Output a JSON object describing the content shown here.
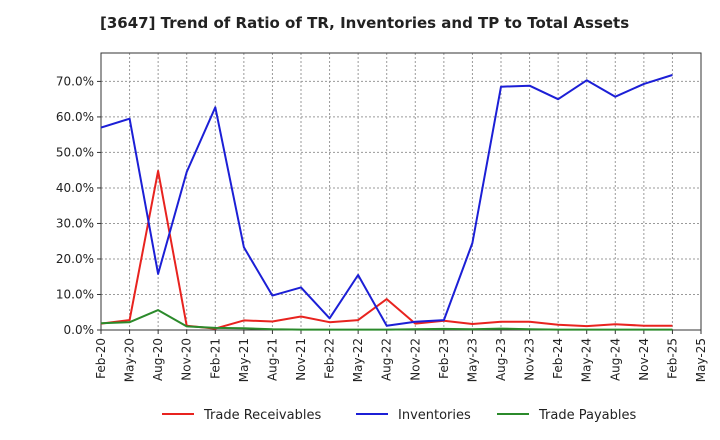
{
  "chart_data": {
    "type": "line",
    "title": "[3647]  Trend of Ratio of TR, Inventories and TP to Total Assets",
    "xlabel": "",
    "ylabel": "",
    "categories": [
      "Feb-20",
      "May-20",
      "Aug-20",
      "Nov-20",
      "Feb-21",
      "May-21",
      "Aug-21",
      "Nov-21",
      "Feb-22",
      "May-22",
      "Aug-22",
      "Nov-22",
      "Feb-23",
      "May-23",
      "Aug-23",
      "Nov-23",
      "Feb-24",
      "May-24",
      "Aug-24",
      "Nov-24",
      "Feb-25",
      "May-25"
    ],
    "ylim": [
      0,
      78
    ],
    "yticks": [
      0,
      10,
      20,
      30,
      40,
      50,
      60,
      70
    ],
    "ytick_labels": [
      "0.0%",
      "10.0%",
      "20.0%",
      "30.0%",
      "40.0%",
      "50.0%",
      "60.0%",
      "70.0%"
    ],
    "grid": true,
    "legend_position": "bottom",
    "series": [
      {
        "name": "Trade Receivables",
        "color": "#e8231f",
        "values": [
          1.8,
          2.8,
          44.8,
          1.2,
          0.4,
          2.7,
          2.4,
          3.8,
          2.2,
          2.8,
          8.7,
          1.8,
          2.6,
          1.7,
          2.3,
          2.3,
          1.5,
          1.1,
          1.6,
          1.2,
          1.2,
          null
        ]
      },
      {
        "name": "Inventories",
        "color": "#1c1fd6",
        "values": [
          57.0,
          59.5,
          15.8,
          44.5,
          62.7,
          23.3,
          9.7,
          12.0,
          3.3,
          15.5,
          1.2,
          2.3,
          2.8,
          24.5,
          68.5,
          68.8,
          65.0,
          70.3,
          65.7,
          69.3,
          71.8,
          null
        ]
      },
      {
        "name": "Trade Payables",
        "color": "#2b8a2b",
        "values": [
          1.9,
          2.2,
          5.6,
          1.0,
          0.6,
          0.5,
          0.2,
          0.1,
          0.1,
          0.1,
          0.1,
          0.2,
          0.3,
          0.2,
          0.4,
          0.2,
          0.1,
          0.1,
          0.1,
          0.1,
          0.1,
          null
        ]
      }
    ]
  }
}
